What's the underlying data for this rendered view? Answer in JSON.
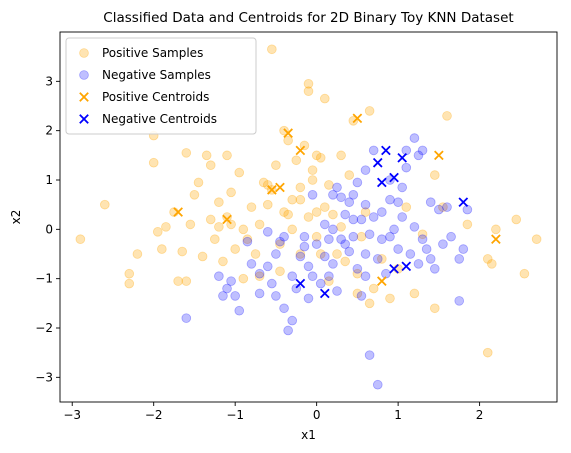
{
  "chart_data": {
    "type": "scatter",
    "title": "Classified Data and Centroids for 2D Binary Toy KNN Dataset",
    "xlabel": "x1",
    "ylabel": "x2",
    "xlim": [
      -3.15,
      2.95
    ],
    "ylim": [
      -3.5,
      4.0
    ],
    "xticks": [
      -3,
      -2,
      -1,
      0,
      1,
      2
    ],
    "yticks": [
      -3,
      -2,
      -1,
      0,
      1,
      2,
      3
    ],
    "grid": false,
    "legend_position": "top-left",
    "series": [
      {
        "name": "Positive Samples",
        "marker": "circle",
        "color": "#FFA500",
        "opacity": 0.3,
        "points": [
          [
            -2.9,
            -0.2
          ],
          [
            -2.6,
            0.5
          ],
          [
            -2.3,
            -0.9
          ],
          [
            -2.3,
            -1.1
          ],
          [
            -2.2,
            -0.5
          ],
          [
            -2.0,
            1.9
          ],
          [
            -2.0,
            1.35
          ],
          [
            -1.95,
            -0.05
          ],
          [
            -1.9,
            -0.4
          ],
          [
            -1.85,
            0.05
          ],
          [
            -1.75,
            0.35
          ],
          [
            -1.7,
            -1.05
          ],
          [
            -1.65,
            -0.45
          ],
          [
            -1.6,
            -1.05
          ],
          [
            -1.6,
            1.55
          ],
          [
            -1.55,
            0.1
          ],
          [
            -1.45,
            0.95
          ],
          [
            -1.4,
            -0.55
          ],
          [
            -1.35,
            1.5
          ],
          [
            -1.3,
            1.3
          ],
          [
            -1.3,
            0.2
          ],
          [
            -1.25,
            -0.2
          ],
          [
            -1.2,
            0.55
          ],
          [
            -1.2,
            0.05
          ],
          [
            -1.15,
            -0.65
          ],
          [
            -1.1,
            1.5
          ],
          [
            -1.1,
            0.25
          ],
          [
            -1.05,
            0.75
          ],
          [
            -1.05,
            0.1
          ],
          [
            -1.0,
            -0.4
          ],
          [
            -0.95,
            1.15
          ],
          [
            -0.9,
            -1.0
          ],
          [
            -0.85,
            -0.2
          ],
          [
            -0.8,
            0.45
          ],
          [
            -0.75,
            -0.5
          ],
          [
            -0.7,
            0.1
          ],
          [
            -0.65,
            0.95
          ],
          [
            -0.6,
            0.5
          ],
          [
            -0.6,
            0.9
          ],
          [
            -0.55,
            3.65
          ],
          [
            -0.55,
            0.8
          ],
          [
            -0.5,
            1.3
          ],
          [
            -0.45,
            -0.3
          ],
          [
            -0.4,
            0.35
          ],
          [
            -0.4,
            2.0
          ],
          [
            -0.35,
            1.8
          ],
          [
            -0.3,
            0.6
          ],
          [
            -0.3,
            0.0
          ],
          [
            -0.25,
            1.4
          ],
          [
            -0.2,
            0.85
          ],
          [
            -0.2,
            -0.5
          ],
          [
            -0.15,
            1.7
          ],
          [
            -0.1,
            0.25
          ],
          [
            -0.05,
            1.0
          ],
          [
            0.0,
            0.35
          ],
          [
            -0.05,
            1.2
          ],
          [
            0.0,
            -0.15
          ],
          [
            0.05,
            1.45
          ],
          [
            0.1,
            2.65
          ],
          [
            0.1,
            0.45
          ],
          [
            0.15,
            0.9
          ],
          [
            0.2,
            0.3
          ],
          [
            0.25,
            -0.5
          ],
          [
            -0.1,
            2.95
          ],
          [
            -0.1,
            2.8
          ],
          [
            0.3,
            0.05
          ],
          [
            0.3,
            1.5
          ],
          [
            0.35,
            -0.65
          ],
          [
            0.4,
            1.1
          ],
          [
            0.45,
            2.2
          ],
          [
            0.5,
            -0.9
          ],
          [
            0.55,
            -0.15
          ],
          [
            0.6,
            0.35
          ],
          [
            0.65,
            2.4
          ],
          [
            0.65,
            -1.5
          ],
          [
            0.7,
            -1.2
          ],
          [
            0.8,
            -0.6
          ],
          [
            0.9,
            -1.4
          ],
          [
            1.0,
            -0.8
          ],
          [
            1.1,
            0.45
          ],
          [
            1.2,
            -1.3
          ],
          [
            1.3,
            -0.1
          ],
          [
            1.45,
            1.1
          ],
          [
            1.45,
            -1.6
          ],
          [
            1.55,
            0.45
          ],
          [
            1.6,
            2.3
          ],
          [
            1.85,
            0.1
          ],
          [
            2.1,
            -0.6
          ],
          [
            2.1,
            -2.5
          ],
          [
            2.15,
            -0.7
          ],
          [
            2.2,
            0.0
          ],
          [
            2.45,
            0.2
          ],
          [
            2.55,
            -0.9
          ],
          [
            2.7,
            -0.2
          ],
          [
            -0.7,
            -0.95
          ],
          [
            -0.45,
            -0.85
          ],
          [
            0.15,
            -1.05
          ],
          [
            0.5,
            -1.3
          ],
          [
            -0.2,
            0.6
          ],
          [
            -0.35,
            0.3
          ],
          [
            0.0,
            1.5
          ],
          [
            -1.5,
            0.7
          ],
          [
            -0.9,
            0.0
          ],
          [
            0.05,
            -0.5
          ]
        ]
      },
      {
        "name": "Negative Samples",
        "marker": "circle",
        "color": "#0000FF",
        "opacity": 0.25,
        "points": [
          [
            -1.6,
            -1.8
          ],
          [
            -1.2,
            -0.95
          ],
          [
            -1.15,
            -1.35
          ],
          [
            -1.1,
            -1.2
          ],
          [
            -1.05,
            -1.05
          ],
          [
            -1.0,
            -1.35
          ],
          [
            -0.95,
            -1.65
          ],
          [
            -0.85,
            -0.25
          ],
          [
            -0.8,
            -0.7
          ],
          [
            -0.7,
            -0.9
          ],
          [
            -0.7,
            -1.3
          ],
          [
            -0.6,
            -0.75
          ],
          [
            -0.55,
            -1.1
          ],
          [
            -0.5,
            -0.5
          ],
          [
            -0.5,
            -1.35
          ],
          [
            -0.45,
            -0.25
          ],
          [
            -0.4,
            -1.6
          ],
          [
            -0.35,
            -2.05
          ],
          [
            -0.3,
            -1.85
          ],
          [
            -0.3,
            -0.95
          ],
          [
            -0.25,
            -1.2
          ],
          [
            -0.2,
            -0.55
          ],
          [
            -0.15,
            -0.15
          ],
          [
            -0.1,
            -0.75
          ],
          [
            -0.1,
            -1.4
          ],
          [
            -0.05,
            -0.95
          ],
          [
            0.0,
            -0.3
          ],
          [
            0.05,
            -1.1
          ],
          [
            0.1,
            -0.55
          ],
          [
            0.15,
            -0.95
          ],
          [
            0.2,
            -0.7
          ],
          [
            0.25,
            -1.25
          ],
          [
            0.25,
            0.85
          ],
          [
            0.3,
            -0.2
          ],
          [
            0.35,
            0.3
          ],
          [
            0.4,
            -0.45
          ],
          [
            0.4,
            0.55
          ],
          [
            0.45,
            -0.15
          ],
          [
            0.5,
            0.95
          ],
          [
            0.5,
            -0.8
          ],
          [
            0.55,
            0.2
          ],
          [
            0.55,
            -1.35
          ],
          [
            0.6,
            -0.5
          ],
          [
            0.6,
            0.5
          ],
          [
            0.65,
            -0.1
          ],
          [
            0.65,
            -2.55
          ],
          [
            0.7,
            0.25
          ],
          [
            0.75,
            -3.15
          ],
          [
            0.75,
            -0.6
          ],
          [
            0.8,
            0.35
          ],
          [
            0.8,
            -0.2
          ],
          [
            0.85,
            -0.9
          ],
          [
            0.9,
            0.6
          ],
          [
            0.95,
            0.0
          ],
          [
            1.0,
            -0.4
          ],
          [
            1.05,
            0.25
          ],
          [
            1.1,
            1.25
          ],
          [
            1.15,
            -0.5
          ],
          [
            1.2,
            1.85
          ],
          [
            1.25,
            1.5
          ],
          [
            1.3,
            -0.2
          ],
          [
            1.35,
            -0.4
          ],
          [
            1.4,
            -0.6
          ],
          [
            1.45,
            -0.8
          ],
          [
            1.5,
            0.4
          ],
          [
            1.55,
            -0.3
          ],
          [
            1.6,
            0.45
          ],
          [
            1.65,
            -0.15
          ],
          [
            1.75,
            -0.6
          ],
          [
            1.85,
            0.4
          ],
          [
            1.8,
            -0.4
          ],
          [
            1.3,
            1.6
          ],
          [
            1.4,
            0.55
          ],
          [
            1.1,
            1.6
          ],
          [
            0.9,
            1.0
          ],
          [
            0.7,
            1.6
          ],
          [
            0.6,
            1.2
          ],
          [
            0.45,
            0.2
          ],
          [
            0.35,
            -0.3
          ],
          [
            0.2,
            0.0
          ],
          [
            0.1,
            0.1
          ],
          [
            0.3,
            0.65
          ],
          [
            0.45,
            0.7
          ],
          [
            0.15,
            -0.2
          ],
          [
            -0.15,
            -0.35
          ],
          [
            -0.05,
            0.7
          ],
          [
            1.05,
            0.85
          ],
          [
            1.2,
            0.05
          ],
          [
            1.75,
            -1.45
          ],
          [
            0.6,
            -0.95
          ],
          [
            -0.6,
            -0.05
          ],
          [
            -0.4,
            -0.15
          ],
          [
            0.2,
            0.7
          ],
          [
            0.9,
            -0.15
          ],
          [
            1.0,
            0.55
          ],
          [
            1.25,
            -0.7
          ]
        ]
      },
      {
        "name": "Positive Centroids",
        "marker": "x",
        "color": "#FFA500",
        "opacity": 1,
        "points": [
          [
            -1.7,
            0.35
          ],
          [
            -1.1,
            0.2
          ],
          [
            -0.55,
            0.8
          ],
          [
            -0.45,
            0.85
          ],
          [
            -0.35,
            1.95
          ],
          [
            -0.2,
            1.6
          ],
          [
            0.5,
            2.25
          ],
          [
            0.8,
            -1.05
          ],
          [
            1.5,
            1.5
          ],
          [
            2.2,
            -0.2
          ]
        ]
      },
      {
        "name": "Negative Centroids",
        "marker": "x",
        "color": "#0000FF",
        "opacity": 1,
        "points": [
          [
            -0.2,
            -1.1
          ],
          [
            0.1,
            -1.3
          ],
          [
            0.75,
            1.35
          ],
          [
            0.8,
            0.95
          ],
          [
            0.85,
            1.6
          ],
          [
            0.95,
            1.05
          ],
          [
            0.95,
            -0.8
          ],
          [
            1.05,
            1.45
          ],
          [
            1.1,
            -0.75
          ],
          [
            1.8,
            0.55
          ]
        ]
      }
    ]
  }
}
